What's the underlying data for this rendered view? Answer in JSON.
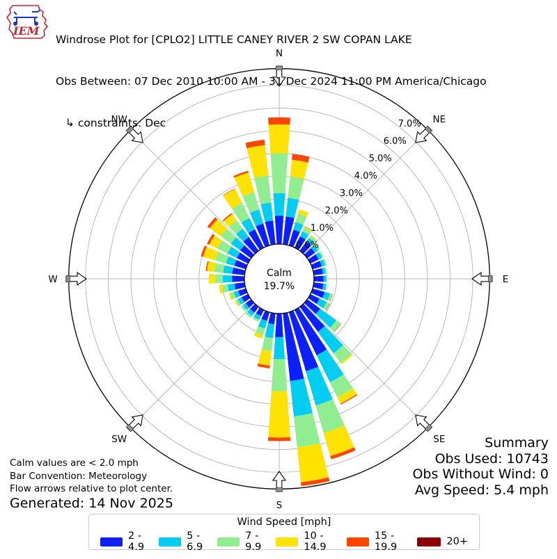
{
  "header": {
    "logo_text": "IEM",
    "title": "Windrose Plot for [CPLO2] LITTLE CANEY RIVER 2 SW COPAN LAKE",
    "subtitle": "Obs Between: 07 Dec 2010 10:00 AM - 31 Dec 2024 11:00 PM America/Chicago",
    "constraints": "↳ constraints: Dec"
  },
  "summary": {
    "title": "Summary",
    "obs_used": "Obs Used: 10743",
    "obs_without_wind": "Obs Without Wind: 0",
    "avg_speed": "Avg Speed: 5.4 mph"
  },
  "notes": {
    "calm_note": "Calm values are < 2.0 mph",
    "convention_note": "Bar Convention: Meteorology",
    "arrows_note": "Flow arrows relative to plot center.",
    "generated": "Generated: 14 Nov 2025"
  },
  "legend": {
    "title": "Wind Speed [mph]",
    "bins": [
      {
        "label": "2 - 4.9",
        "color": "#0c20ff"
      },
      {
        "label": "5 - 6.9",
        "color": "#00cdf2"
      },
      {
        "label": "7 - 9.9",
        "color": "#90ee90"
      },
      {
        "label": "10 - 14.9",
        "color": "#ffe200"
      },
      {
        "label": "15 - 19.9",
        "color": "#ff4500"
      },
      {
        "label": "20+",
        "color": "#8b0000"
      }
    ]
  },
  "chart_data": {
    "type": "bar",
    "polar": true,
    "units": "%",
    "calm_label": "Calm",
    "calm_value": "19.7%",
    "ring_labels": [
      "0.0%",
      "1.0%",
      "2.0%",
      "3.0%",
      "4.0%",
      "5.0%",
      "6.0%",
      "7.0%"
    ],
    "ring_step_percent": 1.0,
    "max_ring_percent": 7,
    "outer_percent": 7.74,
    "bar_half_width_deg": 3.95,
    "compass_labels": [
      "N",
      "NE",
      "E",
      "SE",
      "S",
      "SW",
      "W",
      "NW"
    ],
    "directions_deg": [
      0,
      10,
      20,
      30,
      40,
      50,
      60,
      70,
      80,
      90,
      100,
      110,
      120,
      130,
      140,
      150,
      160,
      170,
      180,
      190,
      200,
      210,
      220,
      230,
      240,
      250,
      260,
      270,
      280,
      290,
      300,
      310,
      320,
      330,
      340,
      350
    ],
    "series": [
      {
        "name": "2 - 4.9",
        "color": "#0c20ff",
        "values": [
          1.25,
          1.23,
          0.72,
          0.55,
          0.5,
          0.42,
          0.4,
          0.42,
          0.4,
          0.42,
          0.42,
          0.55,
          0.45,
          0.7,
          1.36,
          2.22,
          2.71,
          3.0,
          1.04,
          0.48,
          0.4,
          0.3,
          0.32,
          0.3,
          0.32,
          0.35,
          0.45,
          0.55,
          0.55,
          0.53,
          0.55,
          0.6,
          0.75,
          0.9,
          1.0,
          1.05
        ]
      },
      {
        "name": "5 - 6.9",
        "color": "#00cdf2",
        "values": [
          1.0,
          0.83,
          0.35,
          0.25,
          0.2,
          0.18,
          0.17,
          0.15,
          0.13,
          0.12,
          0.13,
          0.25,
          0.35,
          0.88,
          1.17,
          1.33,
          1.57,
          1.57,
          0.97,
          0.62,
          0.35,
          0.18,
          0.18,
          0.15,
          0.18,
          0.2,
          0.3,
          0.4,
          0.4,
          0.38,
          0.45,
          0.5,
          0.45,
          0.55,
          0.65,
          0.8
        ]
      },
      {
        "name": "7 - 9.9",
        "color": "#90ee90",
        "values": [
          1.75,
          0.94,
          0.39,
          0.18,
          0.12,
          0.1,
          0.08,
          0.08,
          0.05,
          0.04,
          0.05,
          0.1,
          0.14,
          0.24,
          0.53,
          0.74,
          1.26,
          1.37,
          1.42,
          0.57,
          0.3,
          0.1,
          0.1,
          0.1,
          0.1,
          0.15,
          0.25,
          0.35,
          0.4,
          0.49,
          0.5,
          0.55,
          0.45,
          0.75,
          0.8,
          1.2
        ]
      },
      {
        "name": "10 - 14.9",
        "color": "#ffe200",
        "values": [
          1.28,
          0.75,
          0.19,
          0.05,
          0.03,
          0,
          0,
          0,
          0,
          0,
          0,
          0,
          0,
          0,
          0.07,
          0.31,
          1.06,
          1.55,
          2.04,
          0.65,
          0.16,
          0,
          0,
          0,
          0.05,
          0.08,
          0.14,
          0.26,
          0.32,
          0.56,
          0.4,
          0.6,
          0.35,
          0.69,
          0.9,
          1.35
        ]
      },
      {
        "name": "15 - 19.9",
        "color": "#ff4500",
        "values": [
          0.31,
          0.26,
          0,
          0.02,
          0,
          0,
          0,
          0,
          0,
          0,
          0,
          0.02,
          0.02,
          0.02,
          0,
          0.04,
          0.15,
          0.17,
          0.16,
          0.12,
          0,
          0,
          0,
          0,
          0,
          0,
          0,
          0,
          0.05,
          0.1,
          0.1,
          0.13,
          0.05,
          0.02,
          0.08,
          0.24
        ]
      },
      {
        "name": "20+",
        "color": "#8b0000",
        "values": [
          0,
          0,
          0,
          0,
          0,
          0,
          0,
          0,
          0,
          0,
          0,
          0,
          0,
          0,
          0,
          0,
          0,
          0,
          0,
          0,
          0,
          0,
          0,
          0,
          0,
          0,
          0,
          0,
          0,
          0,
          0,
          0,
          0,
          0,
          0,
          0
        ]
      }
    ]
  }
}
